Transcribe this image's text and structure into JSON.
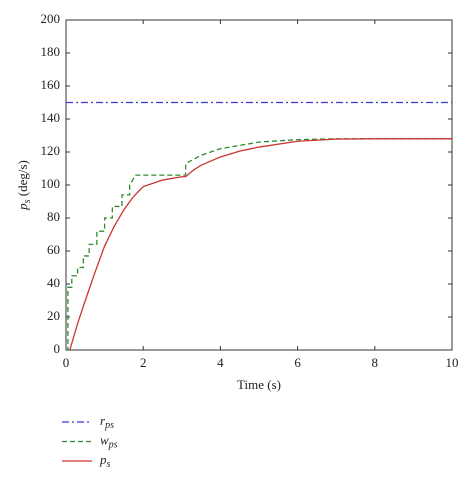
{
  "chart_data": {
    "type": "line",
    "xlabel": "Time (s)",
    "ylabel": "p_s (deg/s)",
    "xlim": [
      0,
      10
    ],
    "xticks": [
      0,
      2,
      4,
      6,
      8,
      10
    ],
    "ylim": [
      0,
      200
    ],
    "yticks": [
      0,
      20,
      40,
      60,
      80,
      100,
      120,
      140,
      160,
      180,
      200
    ],
    "grid": false,
    "legend": "below-left",
    "series": [
      {
        "name": "r_ps",
        "color": "#3a3acc",
        "dash": "dashdot",
        "x": [
          0,
          10
        ],
        "values": [
          150,
          150
        ]
      },
      {
        "name": "w_ps",
        "color": "#2e8b2e",
        "dash": "dashed",
        "x": [
          0,
          0.05,
          0.05,
          0.15,
          0.15,
          0.3,
          0.3,
          0.45,
          0.45,
          0.6,
          0.6,
          0.8,
          0.8,
          1.0,
          1.0,
          1.2,
          1.2,
          1.45,
          1.45,
          1.65,
          1.65,
          1.8,
          3.1,
          3.1,
          3.5,
          4,
          5,
          6,
          7,
          8,
          10
        ],
        "values": [
          0,
          0,
          38,
          38,
          45,
          45,
          50,
          50,
          57,
          57,
          64,
          64,
          72,
          72,
          80,
          80,
          87,
          87,
          94,
          94,
          100,
          106,
          106,
          113,
          118,
          122,
          126,
          127.5,
          128,
          128,
          128
        ]
      },
      {
        "name": "p_s",
        "color": "#cc3333",
        "dash": "solid",
        "x": [
          0.1,
          0.3,
          0.5,
          0.75,
          1,
          1.25,
          1.5,
          1.75,
          2,
          2.5,
          3,
          3.1,
          3.3,
          3.5,
          4,
          4.5,
          5,
          6,
          7,
          8,
          10
        ],
        "values": [
          0,
          16,
          30,
          47,
          63,
          75,
          85,
          93,
          99,
          103,
          105,
          105,
          109,
          112,
          117,
          120.5,
          123,
          126.5,
          127.8,
          128,
          128
        ]
      }
    ]
  }
}
